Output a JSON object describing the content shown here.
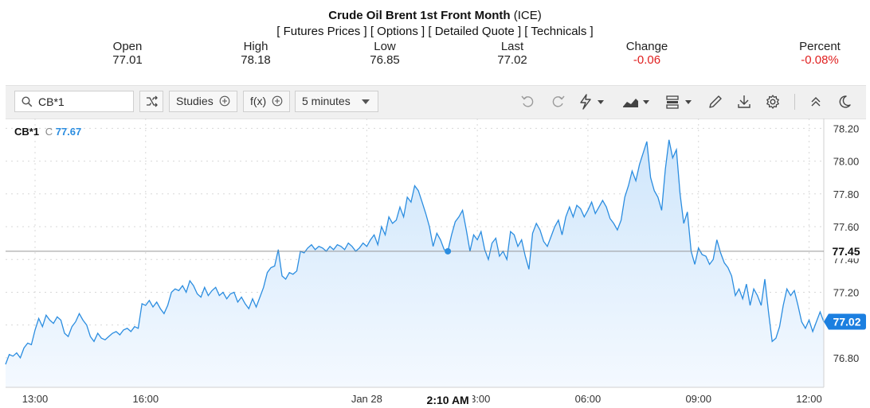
{
  "header": {
    "title_bold": "Crude Oil Brent 1st Front Month",
    "title_suffix": " (ICE)",
    "links": [
      "[ Futures Prices ]",
      "[ Options ]",
      "[ Detailed Quote ]",
      "[ Technicals ]"
    ]
  },
  "stats": [
    {
      "label": "Open",
      "value": "77.01",
      "negative": false
    },
    {
      "label": "High",
      "value": "78.18",
      "negative": false
    },
    {
      "label": "Low",
      "value": "76.85",
      "negative": false
    },
    {
      "label": "Last",
      "value": "77.02",
      "negative": false
    },
    {
      "label": "Change",
      "value": "-0.06",
      "negative": true
    },
    {
      "label": "Percent",
      "value": "-0.08%",
      "negative": true
    }
  ],
  "toolbar": {
    "symbol_value": "CB*1",
    "studies_label": "Studies",
    "fx_label": "f(x)",
    "interval_label": "5 minutes",
    "icons": [
      "shuffle-icon",
      "undo-icon",
      "redo-icon",
      "lightning-icon",
      "area-chart-icon",
      "bar-chart-icon",
      "pencil-icon",
      "download-icon",
      "gear-icon",
      "collapse-icon",
      "moon-icon"
    ]
  },
  "colors": {
    "line": "#2b8de0",
    "area_top": "#cfe6fb",
    "area_bottom": "#f4f9ff",
    "negative": "#e02020",
    "last_badge": "#1b7fe0"
  },
  "chart_data": {
    "type": "area",
    "series_label_symbol": "CB*1",
    "series_label_prefix": "C",
    "series_label_value": "77.67",
    "ylim": [
      76.62,
      78.26
    ],
    "yticks": [
      76.8,
      77.0,
      77.2,
      77.4,
      77.6,
      77.8,
      78.0,
      78.2
    ],
    "ytick_labels": [
      "76.80",
      "77.00",
      "77.20",
      "77.40",
      "77.60",
      "77.80",
      "78.00",
      "78.20"
    ],
    "xtick_labels": [
      "13:00",
      "16:00",
      "Jan 28",
      "03:00",
      "06:00",
      "09:00",
      "12:00"
    ],
    "xtick_positions_hours": [
      1,
      4,
      10,
      13,
      16,
      19,
      22
    ],
    "xlim_hours": [
      0.2,
      22.4
    ],
    "crosshair_price": "77.45",
    "crosshair_value": 77.45,
    "crosshair_time": "2:10 AM",
    "crosshair_x_hours": 12.2,
    "last_price": "77.02",
    "last_value": 77.02,
    "points": [
      [
        0.2,
        76.76
      ],
      [
        0.3,
        76.82
      ],
      [
        0.4,
        76.81
      ],
      [
        0.5,
        76.83
      ],
      [
        0.6,
        76.8
      ],
      [
        0.7,
        76.86
      ],
      [
        0.8,
        76.89
      ],
      [
        0.9,
        76.88
      ],
      [
        1.0,
        76.97
      ],
      [
        1.1,
        77.04
      ],
      [
        1.2,
        76.99
      ],
      [
        1.3,
        77.06
      ],
      [
        1.4,
        77.03
      ],
      [
        1.5,
        77.01
      ],
      [
        1.6,
        77.05
      ],
      [
        1.7,
        77.03
      ],
      [
        1.8,
        76.95
      ],
      [
        1.9,
        76.93
      ],
      [
        2.0,
        76.99
      ],
      [
        2.1,
        77.02
      ],
      [
        2.2,
        77.07
      ],
      [
        2.3,
        77.03
      ],
      [
        2.4,
        77.0
      ],
      [
        2.5,
        76.93
      ],
      [
        2.6,
        76.9
      ],
      [
        2.7,
        76.95
      ],
      [
        2.8,
        76.92
      ],
      [
        2.9,
        76.91
      ],
      [
        3.0,
        76.93
      ],
      [
        3.1,
        76.95
      ],
      [
        3.2,
        76.96
      ],
      [
        3.3,
        76.94
      ],
      [
        3.4,
        76.97
      ],
      [
        3.5,
        76.98
      ],
      [
        3.6,
        76.96
      ],
      [
        3.7,
        76.99
      ],
      [
        3.8,
        76.98
      ],
      [
        3.9,
        77.13
      ],
      [
        4.0,
        77.12
      ],
      [
        4.1,
        77.15
      ],
      [
        4.2,
        77.11
      ],
      [
        4.3,
        77.14
      ],
      [
        4.4,
        77.1
      ],
      [
        4.5,
        77.07
      ],
      [
        4.6,
        77.12
      ],
      [
        4.7,
        77.2
      ],
      [
        4.8,
        77.22
      ],
      [
        4.9,
        77.21
      ],
      [
        5.0,
        77.24
      ],
      [
        5.1,
        77.2
      ],
      [
        5.2,
        77.27
      ],
      [
        5.3,
        77.24
      ],
      [
        5.4,
        77.19
      ],
      [
        5.5,
        77.17
      ],
      [
        5.6,
        77.23
      ],
      [
        5.7,
        77.18
      ],
      [
        5.8,
        77.21
      ],
      [
        5.9,
        77.23
      ],
      [
        6.0,
        77.18
      ],
      [
        6.1,
        77.2
      ],
      [
        6.2,
        77.16
      ],
      [
        6.3,
        77.19
      ],
      [
        6.4,
        77.2
      ],
      [
        6.5,
        77.14
      ],
      [
        6.6,
        77.17
      ],
      [
        6.7,
        77.13
      ],
      [
        6.8,
        77.1
      ],
      [
        6.9,
        77.16
      ],
      [
        7.0,
        77.11
      ],
      [
        7.2,
        77.23
      ],
      [
        7.3,
        77.32
      ],
      [
        7.4,
        77.35
      ],
      [
        7.5,
        77.36
      ],
      [
        7.6,
        77.46
      ],
      [
        7.7,
        77.3
      ],
      [
        7.8,
        77.28
      ],
      [
        7.9,
        77.32
      ],
      [
        8.0,
        77.31
      ],
      [
        8.1,
        77.33
      ],
      [
        8.2,
        77.45
      ],
      [
        8.3,
        77.44
      ],
      [
        8.4,
        77.47
      ],
      [
        8.5,
        77.49
      ],
      [
        8.6,
        77.46
      ],
      [
        8.7,
        77.48
      ],
      [
        8.8,
        77.47
      ],
      [
        8.9,
        77.45
      ],
      [
        9.0,
        77.48
      ],
      [
        9.1,
        77.46
      ],
      [
        9.2,
        77.49
      ],
      [
        9.3,
        77.48
      ],
      [
        9.4,
        77.46
      ],
      [
        9.5,
        77.5
      ],
      [
        9.6,
        77.48
      ],
      [
        9.7,
        77.45
      ],
      [
        9.8,
        77.47
      ],
      [
        9.9,
        77.5
      ],
      [
        10.0,
        77.48
      ],
      [
        10.1,
        77.52
      ],
      [
        10.2,
        77.55
      ],
      [
        10.3,
        77.49
      ],
      [
        10.4,
        77.6
      ],
      [
        10.5,
        77.55
      ],
      [
        10.6,
        77.66
      ],
      [
        10.7,
        77.62
      ],
      [
        10.8,
        77.64
      ],
      [
        10.9,
        77.72
      ],
      [
        11.0,
        77.66
      ],
      [
        11.1,
        77.78
      ],
      [
        11.2,
        77.75
      ],
      [
        11.3,
        77.85
      ],
      [
        11.4,
        77.82
      ],
      [
        11.5,
        77.75
      ],
      [
        11.6,
        77.68
      ],
      [
        11.7,
        77.6
      ],
      [
        11.8,
        77.48
      ],
      [
        11.9,
        77.56
      ],
      [
        12.0,
        77.52
      ],
      [
        12.1,
        77.46
      ],
      [
        12.2,
        77.45
      ],
      [
        12.3,
        77.55
      ],
      [
        12.4,
        77.63
      ],
      [
        12.5,
        77.66
      ],
      [
        12.6,
        77.7
      ],
      [
        12.7,
        77.58
      ],
      [
        12.8,
        77.45
      ],
      [
        12.9,
        77.55
      ],
      [
        13.0,
        77.52
      ],
      [
        13.1,
        77.57
      ],
      [
        13.2,
        77.46
      ],
      [
        13.3,
        77.4
      ],
      [
        13.4,
        77.5
      ],
      [
        13.5,
        77.53
      ],
      [
        13.6,
        77.42
      ],
      [
        13.7,
        77.45
      ],
      [
        13.8,
        77.4
      ],
      [
        13.9,
        77.57
      ],
      [
        14.0,
        77.55
      ],
      [
        14.1,
        77.48
      ],
      [
        14.2,
        77.52
      ],
      [
        14.3,
        77.42
      ],
      [
        14.4,
        77.34
      ],
      [
        14.5,
        77.56
      ],
      [
        14.6,
        77.62
      ],
      [
        14.7,
        77.58
      ],
      [
        14.8,
        77.51
      ],
      [
        14.9,
        77.48
      ],
      [
        15.0,
        77.54
      ],
      [
        15.1,
        77.6
      ],
      [
        15.2,
        77.64
      ],
      [
        15.3,
        77.55
      ],
      [
        15.4,
        77.66
      ],
      [
        15.5,
        77.72
      ],
      [
        15.6,
        77.66
      ],
      [
        15.7,
        77.73
      ],
      [
        15.8,
        77.71
      ],
      [
        15.9,
        77.66
      ],
      [
        16.0,
        77.7
      ],
      [
        16.1,
        77.75
      ],
      [
        16.2,
        77.68
      ],
      [
        16.3,
        77.72
      ],
      [
        16.4,
        77.76
      ],
      [
        16.5,
        77.72
      ],
      [
        16.6,
        77.65
      ],
      [
        16.7,
        77.62
      ],
      [
        16.8,
        77.58
      ],
      [
        16.9,
        77.64
      ],
      [
        17.0,
        77.78
      ],
      [
        17.1,
        77.85
      ],
      [
        17.2,
        77.94
      ],
      [
        17.3,
        77.88
      ],
      [
        17.4,
        77.98
      ],
      [
        17.5,
        78.05
      ],
      [
        17.6,
        78.12
      ],
      [
        17.7,
        77.9
      ],
      [
        17.8,
        77.82
      ],
      [
        17.9,
        77.78
      ],
      [
        18.0,
        77.7
      ],
      [
        18.1,
        77.95
      ],
      [
        18.2,
        78.13
      ],
      [
        18.3,
        78.02
      ],
      [
        18.4,
        78.07
      ],
      [
        18.5,
        77.8
      ],
      [
        18.6,
        77.62
      ],
      [
        18.7,
        77.69
      ],
      [
        18.8,
        77.45
      ],
      [
        18.9,
        77.37
      ],
      [
        19.0,
        77.47
      ],
      [
        19.1,
        77.43
      ],
      [
        19.2,
        77.42
      ],
      [
        19.3,
        77.37
      ],
      [
        19.4,
        77.4
      ],
      [
        19.5,
        77.52
      ],
      [
        19.6,
        77.44
      ],
      [
        19.7,
        77.38
      ],
      [
        19.8,
        77.35
      ],
      [
        19.9,
        77.3
      ],
      [
        20.0,
        77.18
      ],
      [
        20.1,
        77.22
      ],
      [
        20.2,
        77.16
      ],
      [
        20.3,
        77.25
      ],
      [
        20.4,
        77.12
      ],
      [
        20.5,
        77.22
      ],
      [
        20.6,
        77.18
      ],
      [
        20.7,
        77.12
      ],
      [
        20.8,
        77.28
      ],
      [
        20.9,
        77.08
      ],
      [
        21.0,
        76.9
      ],
      [
        21.1,
        76.92
      ],
      [
        21.2,
        76.99
      ],
      [
        21.3,
        77.12
      ],
      [
        21.4,
        77.22
      ],
      [
        21.5,
        77.18
      ],
      [
        21.6,
        77.21
      ],
      [
        21.7,
        77.12
      ],
      [
        21.8,
        77.02
      ],
      [
        21.9,
        76.98
      ],
      [
        22.0,
        77.03
      ],
      [
        22.1,
        76.96
      ],
      [
        22.2,
        77.02
      ],
      [
        22.3,
        77.08
      ],
      [
        22.4,
        77.02
      ]
    ]
  }
}
